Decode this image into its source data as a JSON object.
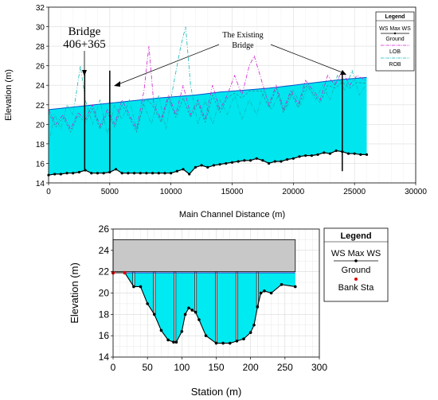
{
  "chart_data": [
    {
      "type": "line",
      "xlabel": "Main Channel Distance (m)",
      "ylabel": "Elevation (m)",
      "xlim": [
        0,
        30000
      ],
      "ylim": [
        14,
        32
      ],
      "xticks": [
        0,
        5000,
        10000,
        15000,
        20000,
        25000,
        30000
      ],
      "yticks": [
        14,
        16,
        18,
        20,
        22,
        24,
        26,
        28,
        30,
        32
      ],
      "grid": true,
      "legend": {
        "title": "Legend",
        "position": "top-right",
        "entries": [
          "WS Max WS",
          "Ground",
          "LOB",
          "ROB"
        ]
      },
      "annotations": {
        "bridge_label_1": "Bridge",
        "bridge_label_2": "406+365",
        "existing_label_1": "The Existing",
        "existing_label_2": "Bridge"
      },
      "bridges_x": [
        2950,
        5000,
        24000
      ],
      "series": [
        {
          "name": "WS Max WS",
          "color": "#00e5ee",
          "x": [
            0,
            3000,
            6000,
            9000,
            12000,
            14000,
            16000,
            18000,
            20000,
            22000,
            24000,
            26000
          ],
          "y": [
            21.5,
            21.9,
            22.3,
            22.7,
            23.0,
            23.3,
            23.5,
            23.7,
            24.0,
            24.3,
            24.6,
            24.8
          ]
        },
        {
          "name": "Ground",
          "color": "#000000",
          "x": [
            0,
            500,
            1000,
            1500,
            2000,
            2500,
            3000,
            3500,
            4000,
            4500,
            5000,
            5500,
            6000,
            6500,
            7000,
            7500,
            8000,
            8500,
            9000,
            9500,
            10000,
            10500,
            11000,
            11500,
            12000,
            12500,
            13000,
            13500,
            14000,
            14500,
            15000,
            15500,
            16000,
            16500,
            17000,
            17500,
            18000,
            18500,
            19000,
            19500,
            20000,
            20500,
            21000,
            21500,
            22000,
            22500,
            23000,
            23500,
            24000,
            24500,
            25000,
            25500,
            26000
          ],
          "y": [
            14.8,
            14.9,
            14.9,
            15.0,
            15.0,
            15.1,
            15.3,
            15.0,
            15.0,
            15.0,
            15.1,
            15.4,
            15.0,
            15.0,
            15.0,
            15.0,
            15.0,
            15.0,
            15.0,
            15.0,
            15.0,
            15.2,
            15.4,
            14.9,
            15.6,
            15.8,
            15.6,
            15.8,
            15.9,
            16.0,
            16.1,
            16.2,
            16.3,
            16.3,
            16.5,
            16.3,
            16.0,
            16.2,
            16.2,
            16.4,
            16.5,
            16.7,
            16.8,
            16.8,
            16.9,
            17.1,
            17.0,
            17.3,
            17.2,
            17.0,
            17.0,
            16.9,
            16.9
          ]
        },
        {
          "name": "LOB",
          "color": "#d020d0",
          "x": [
            0,
            600,
            1200,
            1800,
            2400,
            3000,
            3600,
            4200,
            4800,
            5400,
            6000,
            6600,
            7200,
            7800,
            8200,
            8600,
            9200,
            9800,
            10400,
            11000,
            11600,
            12200,
            12800,
            13400,
            14000,
            14600,
            15200,
            15800,
            16400,
            16800,
            17400,
            18000,
            18600,
            19200,
            19800,
            20400,
            21000,
            21600,
            22200,
            22800,
            23400,
            24000,
            24600,
            25200,
            25900
          ],
          "y": [
            21.5,
            20.0,
            21.0,
            19.5,
            21.2,
            20.5,
            22.0,
            19.8,
            21.5,
            20.0,
            22.5,
            21.0,
            19.5,
            23.5,
            28.0,
            22.0,
            20.5,
            23.0,
            21.0,
            24.0,
            21.0,
            22.5,
            20.5,
            24.0,
            21.5,
            23.0,
            25.0,
            23.0,
            26.0,
            27.0,
            24.5,
            22.0,
            24.0,
            21.5,
            23.5,
            22.0,
            24.5,
            23.5,
            22.5,
            25.0,
            24.0,
            25.5,
            24.0,
            25.0,
            24.5
          ]
        },
        {
          "name": "ROB",
          "color": "#10b8b8",
          "x": [
            0,
            500,
            1000,
            1500,
            2000,
            2600,
            3000,
            3600,
            4200,
            4800,
            5400,
            6000,
            6600,
            7200,
            7800,
            8400,
            9000,
            9600,
            10200,
            10800,
            11200,
            11600,
            12200,
            12800,
            13400,
            14000,
            14600,
            15200,
            15800,
            16400,
            17000,
            17600,
            18200,
            18800,
            19400,
            20000,
            20600,
            21200,
            21800,
            22400,
            23000,
            23600,
            24200,
            24800,
            25400,
            25900
          ],
          "y": [
            18.0,
            21.0,
            19.5,
            22.0,
            21.0,
            26.0,
            22.5,
            20.0,
            22.5,
            19.0,
            22.0,
            20.5,
            22.5,
            19.5,
            22.0,
            20.0,
            23.0,
            19.5,
            24.0,
            28.0,
            30.0,
            24.0,
            20.0,
            22.5,
            20.0,
            22.5,
            21.0,
            23.0,
            20.5,
            22.5,
            21.0,
            23.5,
            21.5,
            23.0,
            21.5,
            23.5,
            22.0,
            24.0,
            22.5,
            24.0,
            22.5,
            25.0,
            23.5,
            25.5,
            23.0,
            24.0
          ]
        }
      ]
    },
    {
      "type": "area",
      "xlabel": "Station (m)",
      "ylabel": "Elevation (m)",
      "xlim": [
        0,
        300
      ],
      "ylim": [
        14,
        26
      ],
      "xticks": [
        0,
        50,
        100,
        150,
        200,
        250,
        300
      ],
      "yticks": [
        14,
        16,
        18,
        20,
        22,
        24,
        26
      ],
      "grid": true,
      "legend": {
        "title": "Legend",
        "position": "right",
        "entries": [
          "WS Max WS",
          "Ground",
          "Bank Sta"
        ]
      },
      "water_surface": 21.9,
      "deck": {
        "x_start": 0,
        "x_end": 265,
        "low_chord": 22.0,
        "high_chord": 25.0
      },
      "piers_x": [
        30,
        60,
        90,
        120,
        150,
        180,
        210
      ],
      "bank_stations": [
        {
          "x": 0,
          "y": 21.9
        },
        {
          "x": 17,
          "y": 21.9
        }
      ],
      "series": [
        {
          "name": "Ground",
          "color": "#000000",
          "x": [
            0,
            17,
            30,
            40,
            50,
            60,
            70,
            80,
            88,
            92,
            100,
            105,
            110,
            115,
            120,
            125,
            135,
            150,
            160,
            170,
            180,
            190,
            200,
            205,
            210,
            215,
            220,
            230,
            245,
            265
          ],
          "y": [
            21.9,
            21.9,
            20.6,
            20.6,
            19.0,
            18.0,
            16.5,
            15.6,
            15.4,
            15.4,
            16.4,
            18.0,
            18.6,
            18.4,
            18.2,
            17.5,
            16.0,
            15.3,
            15.3,
            15.3,
            15.5,
            15.7,
            16.3,
            17.0,
            18.7,
            20.0,
            20.2,
            20.0,
            20.8,
            20.6
          ]
        }
      ]
    }
  ]
}
